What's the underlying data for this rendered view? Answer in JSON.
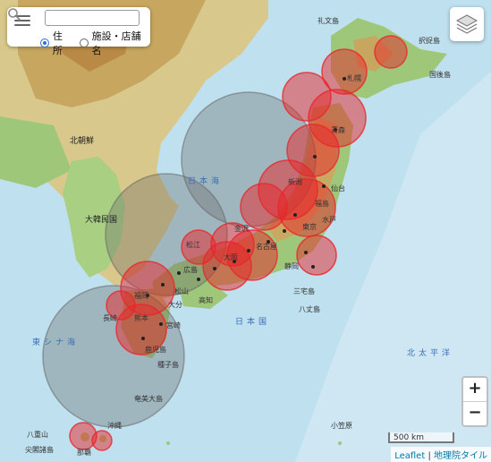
{
  "search": {
    "placeholder": "",
    "radio_address": "住所",
    "radio_facility": "施設・店舗名",
    "selected": "address"
  },
  "map": {
    "scale_label": "500 km",
    "attribution_leaflet": "Leaflet",
    "attribution_sep": " | ",
    "attribution_tiles": "地理院タイル",
    "zoom_in": "+",
    "zoom_out": "−",
    "labels": {
      "north_korea": "北朝鮮",
      "south_korea": "大韓民国",
      "sea_of_japan": "日本海",
      "east_china_sea": "東シナ海",
      "pacific": "北太平洋",
      "japan": "日本国",
      "sapporo": "札幌",
      "aomori": "青森",
      "sendai": "仙台",
      "tokyo": "東京",
      "osaka": "大阪",
      "hiroshima": "広島",
      "fukuoka": "福岡",
      "kagoshima": "鹿児島",
      "naha": "那覇",
      "nagoya": "名古屋",
      "niigata": "新潟",
      "kanazawa": "金沢",
      "matsue": "松江",
      "matsuyama": "松山",
      "kochi": "高知",
      "shizuoka": "静岡",
      "mito": "水戸",
      "fukushima": "福島",
      "miyazaki": "宮崎",
      "oita": "大分",
      "kumamoto": "熊本",
      "nagasaki": "長崎",
      "okinawa": "沖縄",
      "yaeyama": "八重山",
      "amami": "奄美大島",
      "tanegashima": "種子島",
      "miyake": "三宅島",
      "hachijo": "八丈島",
      "ogasawara": "小笠原",
      "senkaku": "尖閣諸島",
      "kuril": "国後島",
      "etorofu": "択捉島",
      "rebun": "礼文島"
    }
  },
  "overlays": {
    "red_circle_color": "#e8262a",
    "gray_circle_color": "#666666"
  }
}
